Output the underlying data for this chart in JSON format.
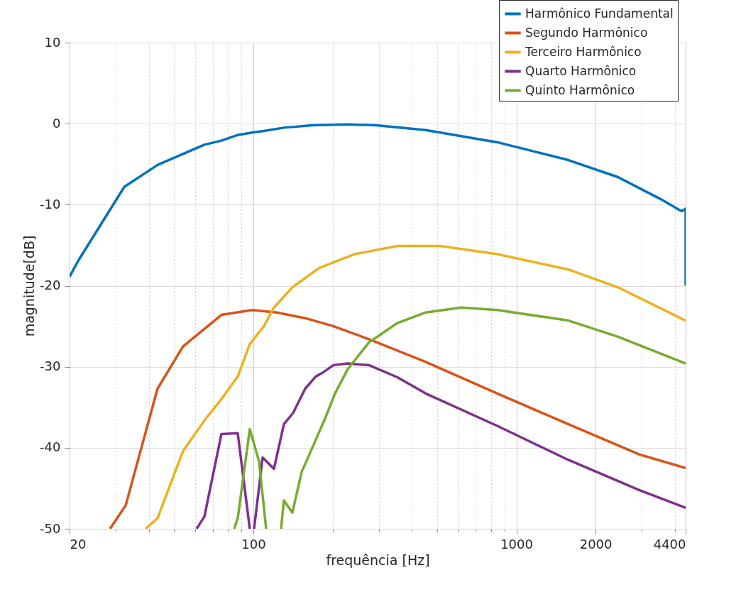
{
  "chart_data": {
    "type": "line",
    "xlabel": "frequência [Hz]",
    "ylabel": "magnitude[dB]",
    "log": "x",
    "xlim": [
      20,
      4400
    ],
    "ylim": [
      -50,
      10
    ],
    "xticks": [
      20,
      {
        "value": 30,
        "label": null
      },
      {
        "value": 40,
        "label": null
      },
      {
        "value": 50,
        "label": null
      },
      {
        "value": 60,
        "label": null
      },
      {
        "value": 70,
        "label": null
      },
      {
        "value": 80,
        "label": null
      },
      {
        "value": 90,
        "label": null
      },
      100,
      {
        "value": 200,
        "label": null
      },
      {
        "value": 300,
        "label": null
      },
      {
        "value": 400,
        "label": null
      },
      {
        "value": 500,
        "label": null
      },
      {
        "value": 600,
        "label": null
      },
      {
        "value": 700,
        "label": null
      },
      {
        "value": 800,
        "label": null
      },
      {
        "value": 900,
        "label": null
      },
      1000,
      2000,
      {
        "value": 3000,
        "label": null
      },
      {
        "value": 4000,
        "label": null
      },
      4400
    ],
    "yticks": [
      -50,
      -40,
      -30,
      -20,
      -10,
      0,
      10
    ],
    "grid": true,
    "legend": "top right",
    "marker": "none",
    "line_style": "solid",
    "series": [
      {
        "name": "Harmônico Fundamental",
        "color": "#0072bd",
        "x": [
          20,
          21.5,
          32.3,
          43.2,
          65.1,
          75.6,
          87.2,
          98.9,
          109.7,
          130.6,
          167.4,
          228.3,
          292.6,
          452,
          846,
          1577,
          2433,
          3530,
          4242,
          4400,
          4400
        ],
        "values": [
          -18.9,
          -17.0,
          -7.8,
          -5.1,
          -2.6,
          -2.1,
          -1.4,
          -1.1,
          -0.9,
          -0.5,
          -0.2,
          -0.1,
          -0.2,
          -0.8,
          -2.3,
          -4.5,
          -6.6,
          -9.3,
          -10.8,
          -10.5,
          -20.0
        ]
      },
      {
        "name": "Segundo Harmônico",
        "color": "#d95319",
        "x": [
          28.5,
          32.7,
          43.2,
          54.0,
          75.6,
          98.9,
          122.7,
          157.4,
          201.8,
          275,
          452,
          846,
          1577,
          2918,
          4400
        ],
        "values": [
          -50,
          -47.1,
          -32.7,
          -27.5,
          -23.6,
          -23.0,
          -23.3,
          -24.0,
          -25.0,
          -26.6,
          -29.4,
          -33.3,
          -37.1,
          -40.8,
          -42.5
        ]
      },
      {
        "name": "Terceiro Harmônico",
        "color": "#edb120",
        "x": [
          38.9,
          43.2,
          54.0,
          65.9,
          75.6,
          87.2,
          96.9,
          109.7,
          119,
          140.7,
          178.2,
          243.1,
          352.8,
          512,
          846,
          1577,
          2433,
          4400
        ],
        "values": [
          -50,
          -48.7,
          -40.4,
          -36.4,
          -34.0,
          -31.2,
          -27.2,
          -25.0,
          -22.8,
          -20.2,
          -17.8,
          -16.1,
          -15.1,
          -15.1,
          -16.1,
          -18.0,
          -20.2,
          -24.3
        ]
      },
      {
        "name": "Quarto Harmônico",
        "color": "#7e2f8e",
        "x": [
          60.8,
          65.1,
          75.6,
          87.2,
          96.9,
          99.5,
          100.6,
          108.4,
          119.7,
          130.6,
          141.6,
          157.4,
          172.8,
          183.9,
          201.8,
          228.3,
          275,
          352.8,
          452,
          846,
          1577,
          2918,
          4400
        ],
        "values": [
          -50,
          -48.5,
          -38.3,
          -38.2,
          -50,
          null,
          -50,
          -41.2,
          -42.6,
          -37.1,
          -35.7,
          -32.7,
          -31.2,
          -30.7,
          -29.8,
          -29.6,
          -29.8,
          -31.3,
          -33.3,
          -37.3,
          -41.5,
          -45.2,
          -47.4
        ]
      },
      {
        "name": "Quinto Harmônico",
        "color": "#77ac30",
        "x": [
          84.5,
          87.2,
          96.9,
          105.1,
          111.8,
          120,
          127.4,
          130.6,
          140.7,
          152.5,
          172.8,
          187.2,
          204.3,
          228.3,
          275,
          352.8,
          452,
          617,
          846,
          1577,
          2433,
          4400
        ],
        "values": [
          -50,
          -48.7,
          -37.7,
          -41.7,
          -50,
          null,
          -50,
          -46.5,
          -48.0,
          -43.0,
          -39.0,
          -36.4,
          -33.3,
          -30.3,
          -27.0,
          -24.6,
          -23.3,
          -22.7,
          -23.0,
          -24.3,
          -26.3,
          -29.6
        ]
      }
    ]
  }
}
